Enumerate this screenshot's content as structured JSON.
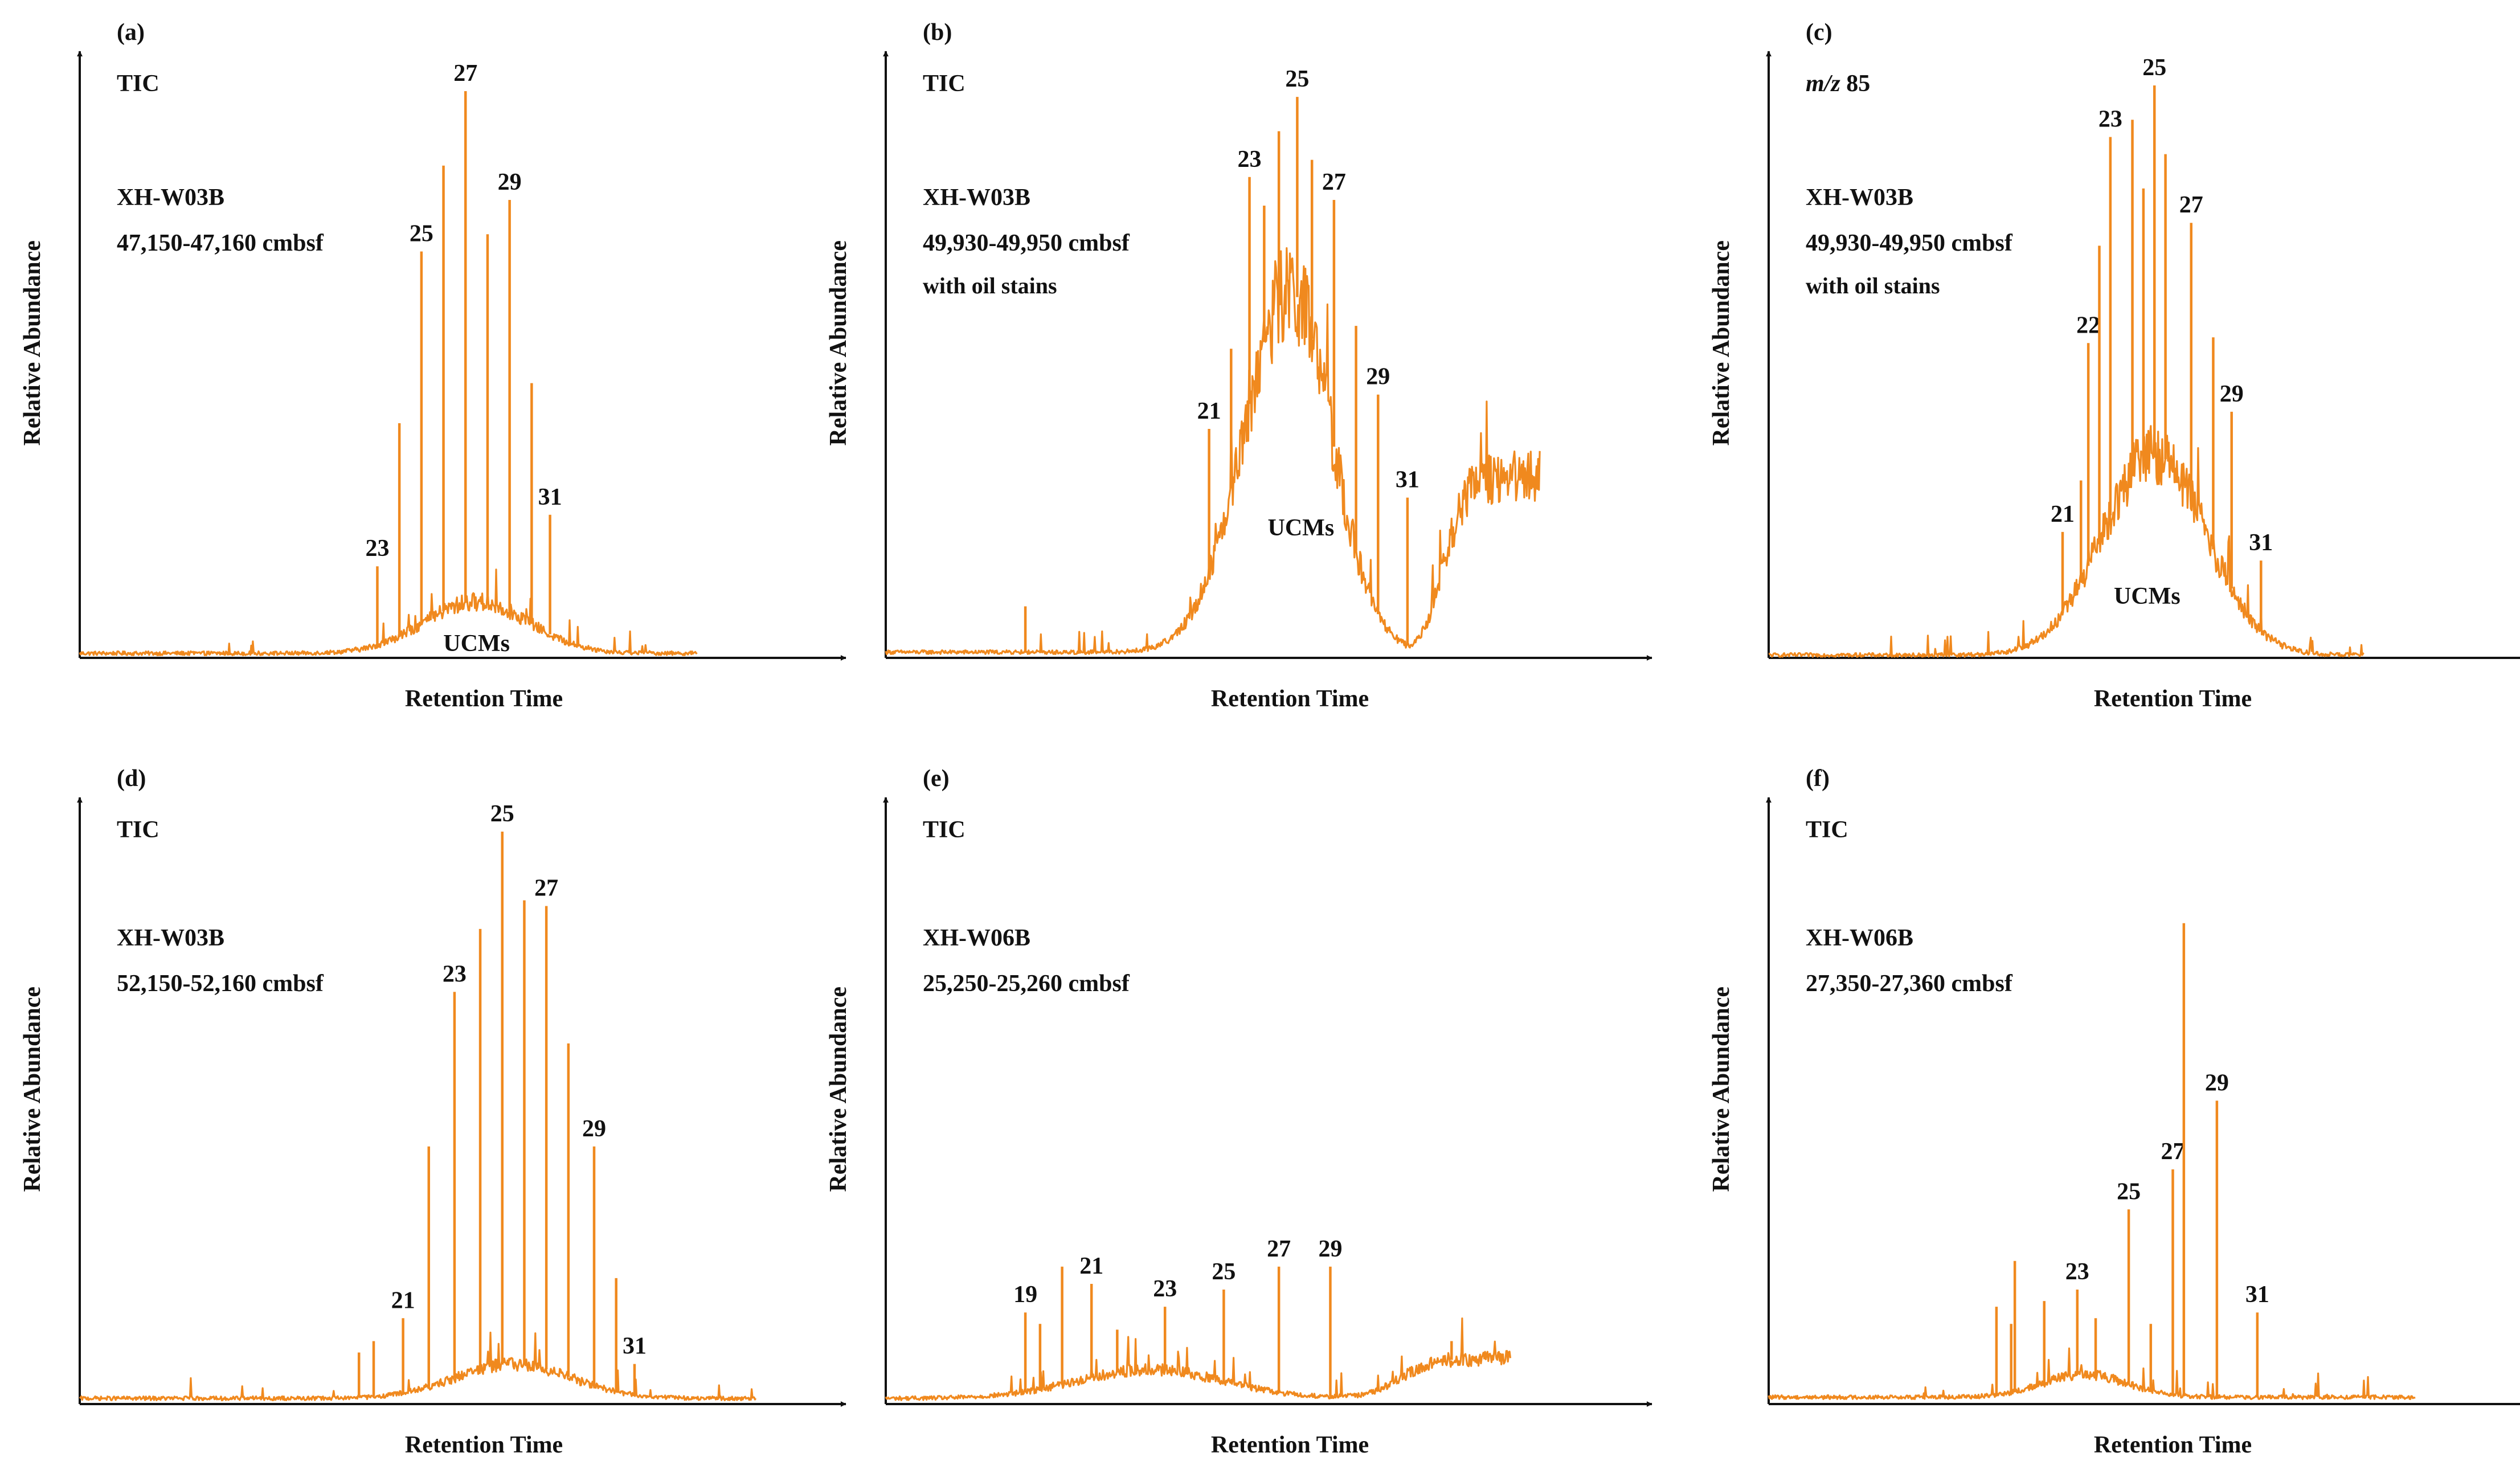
{
  "panels": [
    {
      "letter": "(a)",
      "method": "TIC",
      "sample": "XH-W03B",
      "depth": "47,150-47,160 cmbsf",
      "note": "",
      "xlabel": "Retention Time",
      "ylabel": "Relative Abundance",
      "hump_label": "UCMs",
      "line_color": "#f0891e",
      "chart_data": {
        "type": "line",
        "xlim": [
          0,
          100
        ],
        "ylim": [
          0,
          100
        ],
        "baseline": 0.8,
        "end_x": 84,
        "hump": {
          "center": 54,
          "width": 10,
          "height": 9
        },
        "hump_label_x": 54,
        "peaks": [
          {
            "label": "23",
            "x": 40.5,
            "y": 16
          },
          {
            "label": "",
            "x": 43.5,
            "y": 41
          },
          {
            "label": "25",
            "x": 46.5,
            "y": 71
          },
          {
            "label": "",
            "x": 49.5,
            "y": 86
          },
          {
            "label": "27",
            "x": 52.5,
            "y": 99
          },
          {
            "label": "",
            "x": 55.5,
            "y": 74
          },
          {
            "label": "29",
            "x": 58.5,
            "y": 80
          },
          {
            "label": "",
            "x": 61.5,
            "y": 48
          },
          {
            "label": "31",
            "x": 64,
            "y": 25
          }
        ]
      }
    },
    {
      "letter": "(b)",
      "method": "TIC",
      "sample": "XH-W03B",
      "depth": "49,930-49,950 cmbsf",
      "note": "with oil stains",
      "xlabel": "Retention Time",
      "ylabel": "Relative Abundance",
      "hump_label": "UCMs",
      "line_color": "#f0891e",
      "chart_data": {
        "type": "line",
        "xlim": [
          0,
          100
        ],
        "ylim": [
          0,
          100
        ],
        "baseline": 1,
        "end_x": 89,
        "hump": {
          "center": 55,
          "width": 9.5,
          "height": 63,
          "left_width": 9,
          "right_width": 8,
          "tail_level": 32
        },
        "hump_label_x": 56.5,
        "peaks": [
          {
            "label": "",
            "x": 19,
            "y": 9
          },
          {
            "label": "21",
            "x": 44,
            "y": 40
          },
          {
            "label": "",
            "x": 47,
            "y": 54
          },
          {
            "label": "23",
            "x": 49.5,
            "y": 84
          },
          {
            "label": "",
            "x": 51.5,
            "y": 79
          },
          {
            "label": "",
            "x": 53.5,
            "y": 92
          },
          {
            "label": "25",
            "x": 56,
            "y": 98
          },
          {
            "label": "",
            "x": 58,
            "y": 87
          },
          {
            "label": "27",
            "x": 61,
            "y": 80
          },
          {
            "label": "",
            "x": 64,
            "y": 58
          },
          {
            "label": "29",
            "x": 67,
            "y": 46
          },
          {
            "label": "31",
            "x": 71,
            "y": 28
          }
        ]
      }
    },
    {
      "letter": "(c)",
      "method": "m/z 85",
      "sample": "XH-W03B",
      "depth": "49,930-49,950 cmbsf",
      "note": "with oil stains",
      "xlabel": "Retention Time",
      "ylabel": "Relative Abundance",
      "hump_label": "UCMs",
      "line_color": "#f0891e",
      "chart_data": {
        "type": "line",
        "xlim": [
          0,
          100
        ],
        "ylim": [
          0,
          100
        ],
        "baseline": 0.5,
        "end_x": 81,
        "hump": {
          "center": 52.5,
          "width": 10,
          "height": 35
        },
        "hump_label_x": 51.5,
        "peaks": [
          {
            "label": "21",
            "x": 40,
            "y": 22
          },
          {
            "label": "",
            "x": 42.5,
            "y": 31
          },
          {
            "label": "22",
            "x": 43.5,
            "y": 55
          },
          {
            "label": "",
            "x": 45,
            "y": 72
          },
          {
            "label": "23",
            "x": 46.5,
            "y": 91
          },
          {
            "label": "",
            "x": 49.5,
            "y": 94
          },
          {
            "label": "",
            "x": 51,
            "y": 82
          },
          {
            "label": "25",
            "x": 52.5,
            "y": 100
          },
          {
            "label": "",
            "x": 54,
            "y": 88
          },
          {
            "label": "27",
            "x": 57.5,
            "y": 76
          },
          {
            "label": "",
            "x": 60.5,
            "y": 56
          },
          {
            "label": "29",
            "x": 63,
            "y": 43
          },
          {
            "label": "31",
            "x": 67,
            "y": 17
          }
        ]
      }
    },
    {
      "letter": "(d)",
      "method": "TIC",
      "sample": "XH-W03B",
      "depth": "52,150-52,160 cmbsf",
      "note": "",
      "xlabel": "Retention Time",
      "ylabel": "Relative Abundance",
      "hump_label": "",
      "line_color": "#f0891e",
      "chart_data": {
        "type": "line",
        "xlim": [
          0,
          100
        ],
        "ylim": [
          0,
          100
        ],
        "baseline": 1,
        "end_x": 92,
        "hump": {
          "center": 59,
          "width": 11,
          "height": 6
        },
        "hump_label_x": 0,
        "peaks": [
          {
            "label": "",
            "x": 38,
            "y": 9
          },
          {
            "label": "",
            "x": 40,
            "y": 11
          },
          {
            "label": "21",
            "x": 44,
            "y": 15
          },
          {
            "label": "",
            "x": 47.5,
            "y": 45
          },
          {
            "label": "23",
            "x": 51,
            "y": 72
          },
          {
            "label": "",
            "x": 54.5,
            "y": 83
          },
          {
            "label": "25",
            "x": 57.5,
            "y": 100
          },
          {
            "label": "",
            "x": 60.5,
            "y": 88
          },
          {
            "label": "27",
            "x": 63.5,
            "y": 87
          },
          {
            "label": "",
            "x": 66.5,
            "y": 63
          },
          {
            "label": "29",
            "x": 70,
            "y": 45
          },
          {
            "label": "",
            "x": 73,
            "y": 22
          },
          {
            "label": "31",
            "x": 75.5,
            "y": 7
          }
        ]
      }
    },
    {
      "letter": "(e)",
      "method": "TIC",
      "sample": "XH-W06B",
      "depth": "25,250-25,260 cmbsf",
      "note": "",
      "xlabel": "Retention Time",
      "ylabel": "Relative Abundance",
      "hump_label": "",
      "line_color": "#f0891e",
      "chart_data": {
        "type": "line",
        "xlim": [
          0,
          100
        ],
        "ylim": [
          0,
          100
        ],
        "baseline": 1,
        "end_x": 85,
        "hump": {
          "center": 36,
          "width": 14,
          "height": 5,
          "tail_level": 8,
          "rise_x": 70
        },
        "hump_label_x": 0,
        "peaks": [
          {
            "label": "19",
            "x": 19,
            "y": 16
          },
          {
            "label": "",
            "x": 21,
            "y": 14
          },
          {
            "label": "",
            "x": 24,
            "y": 24
          },
          {
            "label": "21",
            "x": 28,
            "y": 21
          },
          {
            "label": "",
            "x": 31.5,
            "y": 13
          },
          {
            "label": "23",
            "x": 38,
            "y": 17
          },
          {
            "label": "25",
            "x": 46,
            "y": 20
          },
          {
            "label": "27",
            "x": 53.5,
            "y": 24
          },
          {
            "label": "29",
            "x": 60.5,
            "y": 24
          },
          {
            "label": "",
            "x": 77,
            "y": 11
          }
        ]
      }
    },
    {
      "letter": "(f)",
      "method": "TIC",
      "sample": "XH-W06B",
      "depth": "27,350-27,360 cmbsf",
      "note": "",
      "xlabel": "Retention Time",
      "ylabel": "Relative Abundance",
      "hump_label": "",
      "line_color": "#f0891e",
      "chart_data": {
        "type": "line",
        "xlim": [
          0,
          100
        ],
        "ylim": [
          0,
          100
        ],
        "baseline": 1.2,
        "end_x": 88,
        "hump": {
          "center": 43,
          "width": 8,
          "height": 4
        },
        "hump_label_x": 0,
        "peaks": [
          {
            "label": "",
            "x": 31,
            "y": 17
          },
          {
            "label": "",
            "x": 33,
            "y": 14
          },
          {
            "label": "",
            "x": 33.5,
            "y": 25
          },
          {
            "label": "",
            "x": 37.5,
            "y": 18
          },
          {
            "label": "23",
            "x": 42,
            "y": 20
          },
          {
            "label": "",
            "x": 44.5,
            "y": 15
          },
          {
            "label": "25",
            "x": 49,
            "y": 34
          },
          {
            "label": "",
            "x": 52,
            "y": 14
          },
          {
            "label": "27",
            "x": 55,
            "y": 41
          },
          {
            "label": "",
            "x": 56.5,
            "y": 84
          },
          {
            "label": "29",
            "x": 61,
            "y": 53
          },
          {
            "label": "31",
            "x": 66.5,
            "y": 16
          }
        ]
      }
    }
  ]
}
